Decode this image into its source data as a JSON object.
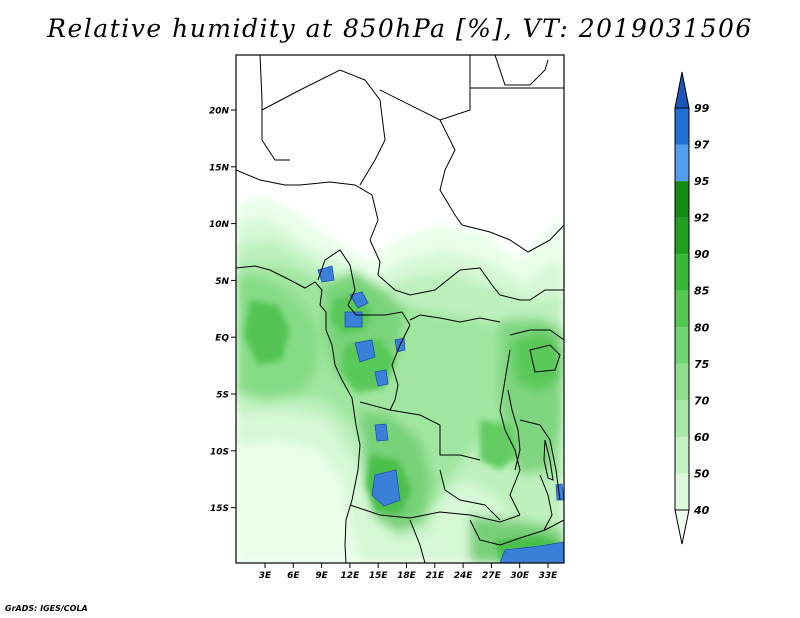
{
  "title": "Relative humidity at 850hPa [%], VT: 2019031506",
  "credit": "GrADS: IGES/COLA",
  "map": {
    "lat_labels": [
      "20N",
      "15N",
      "10N",
      "5N",
      "EQ",
      "5S",
      "10S",
      "15S"
    ],
    "lon_labels": [
      "3E",
      "6E",
      "9E",
      "12E",
      "15E",
      "18E",
      "21E",
      "24E",
      "27E",
      "30E",
      "33E"
    ],
    "variable": "relative humidity",
    "level": "850hPa",
    "units": "%"
  },
  "colorbar": {
    "levels": [
      "40",
      "50",
      "60",
      "70",
      "75",
      "80",
      "85",
      "90",
      "92",
      "95",
      "97",
      "99"
    ],
    "colors": [
      "#f0fff0",
      "#dcfadc",
      "#c4f2c4",
      "#a8e8a8",
      "#8ede8e",
      "#70d470",
      "#52c852",
      "#38b838",
      "#20a020",
      "#138a13",
      "#4f9fee",
      "#1f6fd8",
      "#1d55b8"
    ]
  },
  "palette": {
    "background": "#ffffff",
    "border": "#000000",
    "moist_blue": "#3a7fd8",
    "moist_blue_edge": "#2050b0"
  }
}
